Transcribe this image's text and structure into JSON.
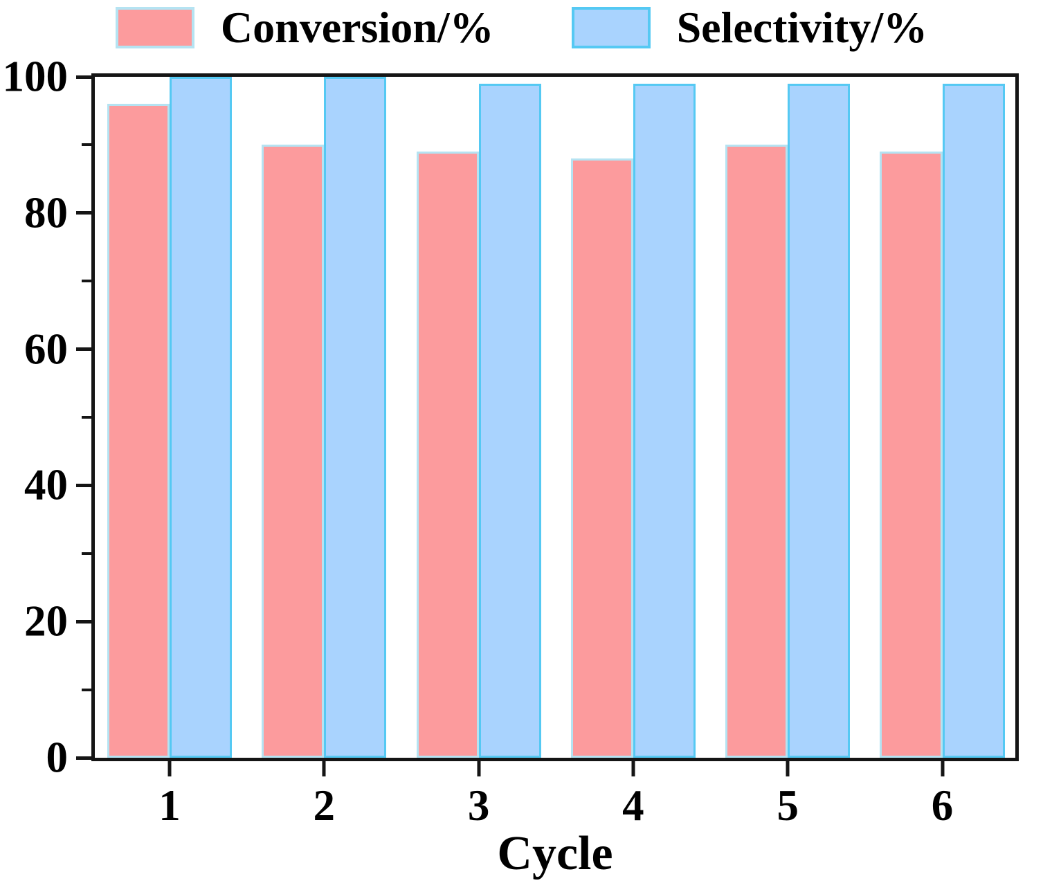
{
  "figure": {
    "background": "#ffffff",
    "axis_color": "#151515",
    "text_color": "#000000"
  },
  "chart_data": {
    "type": "bar",
    "title": "",
    "xlabel": "Cycle",
    "ylabel": "",
    "categories": [
      "1",
      "2",
      "3",
      "4",
      "5",
      "6"
    ],
    "series": [
      {
        "name": "Conversion/%",
        "values": [
          96,
          90,
          89,
          88,
          90,
          89
        ],
        "fill": "#fc9b9d",
        "edge": "#b5e3f2"
      },
      {
        "name": "Selectivity/%",
        "values": [
          100,
          100,
          99,
          99,
          99,
          99
        ],
        "fill": "#a9d3fe",
        "edge": "#55c9f3"
      }
    ],
    "ylim": [
      0,
      100
    ],
    "yticks_major": [
      0,
      20,
      40,
      60,
      80,
      100
    ],
    "yticks_minor": [
      10,
      30,
      50,
      70,
      90
    ],
    "grid": false,
    "legend_position": "top"
  }
}
